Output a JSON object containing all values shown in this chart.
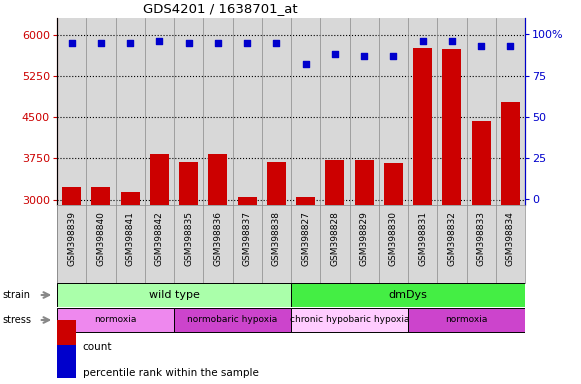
{
  "title": "GDS4201 / 1638701_at",
  "samples": [
    "GSM398839",
    "GSM398840",
    "GSM398841",
    "GSM398842",
    "GSM398835",
    "GSM398836",
    "GSM398837",
    "GSM398838",
    "GSM398827",
    "GSM398828",
    "GSM398829",
    "GSM398830",
    "GSM398831",
    "GSM398832",
    "GSM398833",
    "GSM398834"
  ],
  "count_values": [
    3220,
    3230,
    3130,
    3820,
    3680,
    3820,
    3040,
    3680,
    3040,
    3720,
    3710,
    3660,
    5750,
    5730,
    4430,
    4780
  ],
  "percentile_values": [
    95,
    95,
    95,
    96,
    95,
    95,
    95,
    95,
    82,
    88,
    87,
    87,
    96,
    96,
    93,
    93
  ],
  "strain_groups": [
    {
      "label": "wild type",
      "start": 0,
      "end": 8,
      "color": "#AAFFAA"
    },
    {
      "label": "dmDys",
      "start": 8,
      "end": 16,
      "color": "#44EE44"
    }
  ],
  "stress_groups": [
    {
      "label": "normoxia",
      "start": 0,
      "end": 4,
      "color": "#EE88EE"
    },
    {
      "label": "normobaric hypoxia",
      "start": 4,
      "end": 8,
      "color": "#CC44CC"
    },
    {
      "label": "chronic hypobaric hypoxia",
      "start": 8,
      "end": 12,
      "color": "#FFCCFF"
    },
    {
      "label": "normoxia",
      "start": 12,
      "end": 16,
      "color": "#CC44CC"
    }
  ],
  "ylim_left": [
    2900,
    6300
  ],
  "ylim_right": [
    -3.6,
    110
  ],
  "yticks_left": [
    3000,
    3750,
    4500,
    5250,
    6000
  ],
  "yticks_right": [
    0,
    25,
    50,
    75,
    100
  ],
  "bar_color": "#CC0000",
  "dot_color": "#0000CC",
  "bg_color": "#D8D8D8",
  "left_tick_color": "#CC0000",
  "right_tick_color": "#0000CC"
}
